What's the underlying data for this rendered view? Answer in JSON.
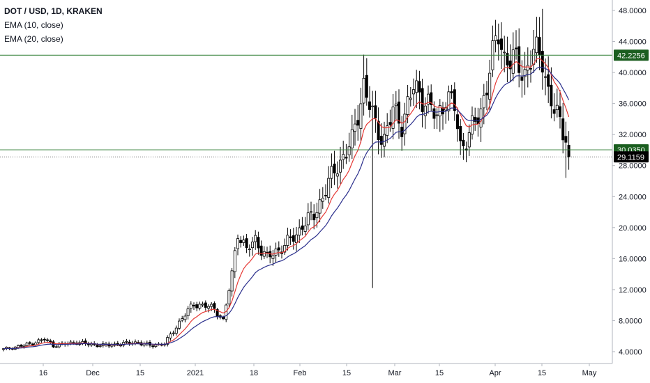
{
  "legend": {
    "symbol": "DOT / USD, 1D, KRAKEN",
    "ema10": "EMA (10, close)",
    "ema20": "EMA (20, close)"
  },
  "colors": {
    "up_candle": "#ffffff",
    "down_candle": "#000000",
    "candle_outline": "#000000",
    "ema10": "#e53935",
    "ema20": "#2a2e8c",
    "level_line": "#2e7d32",
    "level_badge": "#1b5e20",
    "last_price_badge": "#000000",
    "axis_text": "#131722",
    "grid": "#ffffff"
  },
  "chart_data": {
    "type": "candlestick",
    "y_axis_ticks": [
      "4.0000",
      "8.0000",
      "12.0000",
      "16.0000",
      "20.0000",
      "24.0000",
      "28.0000",
      "32.0000",
      "36.0000",
      "40.0000",
      "44.0000",
      "48.0000"
    ],
    "x_axis_ticks": [
      "16",
      "Dec",
      "15",
      "2021",
      "18",
      "Feb",
      "15",
      "Mar",
      "15",
      "Apr",
      "15",
      "May"
    ],
    "ylim": [
      3,
      49
    ],
    "horizontal_levels": [
      {
        "value": 42.2256,
        "label": "42.2256"
      },
      {
        "value": 30.035,
        "label": "30.0350"
      }
    ],
    "last_price": {
      "value": 29.1159,
      "label": "29.1159"
    },
    "close_anchors": [
      [
        0,
        4.3
      ],
      [
        8,
        4.9
      ],
      [
        14,
        5.6
      ],
      [
        17,
        4.8
      ],
      [
        25,
        5.2
      ],
      [
        30,
        4.9
      ],
      [
        35,
        4.8
      ],
      [
        40,
        5.0
      ],
      [
        45,
        5.2
      ],
      [
        50,
        4.8
      ],
      [
        55,
        5.0
      ],
      [
        60,
        7.8
      ],
      [
        65,
        10.2
      ],
      [
        72,
        9.6
      ],
      [
        75,
        8.0
      ],
      [
        78,
        14.0
      ],
      [
        80,
        19.5
      ],
      [
        83,
        17.0
      ],
      [
        86,
        18.5
      ],
      [
        90,
        16.0
      ],
      [
        95,
        17.5
      ],
      [
        100,
        19.0
      ],
      [
        102,
        20.5
      ],
      [
        106,
        21.5
      ],
      [
        110,
        25.0
      ],
      [
        114,
        28.0
      ],
      [
        119,
        31.0
      ],
      [
        123,
        38.5
      ],
      [
        127,
        33.0
      ],
      [
        130,
        31.5
      ],
      [
        133,
        35.0
      ],
      [
        136,
        33.5
      ],
      [
        140,
        38.0
      ],
      [
        144,
        36.5
      ],
      [
        148,
        34.0
      ],
      [
        151,
        37.0
      ],
      [
        154,
        35.5
      ],
      [
        156,
        30.5
      ],
      [
        159,
        32.0
      ],
      [
        163,
        35.0
      ],
      [
        166,
        40.5
      ],
      [
        169,
        45.0
      ],
      [
        171,
        42.0
      ],
      [
        174,
        41.5
      ],
      [
        178,
        40.0
      ],
      [
        181,
        42.5
      ],
      [
        184,
        42.0
      ],
      [
        186,
        37.5
      ],
      [
        188,
        35.0
      ],
      [
        190,
        33.5
      ],
      [
        192,
        32.0
      ],
      [
        193,
        29.12
      ]
    ],
    "series": [
      {
        "name": "EMA (10, close)",
        "period": 10
      },
      {
        "name": "EMA (20, close)",
        "period": 20
      }
    ]
  }
}
